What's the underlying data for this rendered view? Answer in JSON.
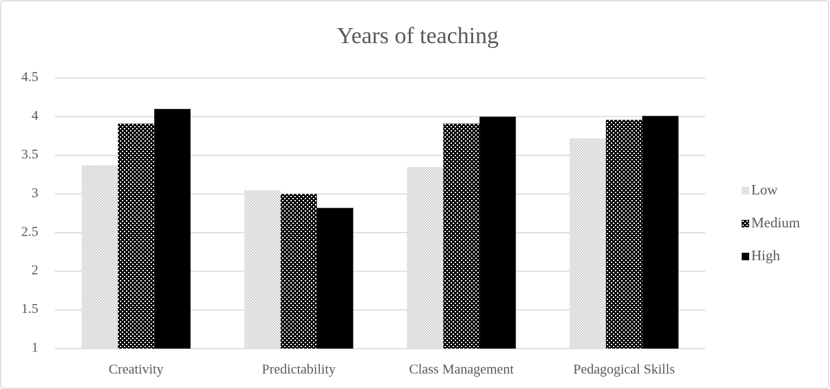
{
  "chart_data": {
    "type": "bar",
    "title": "Years of teaching",
    "categories": [
      "Creativity",
      "Predictability",
      "Class Management",
      "Pedagogical Skills"
    ],
    "series": [
      {
        "name": "Low",
        "color": "#d9d9d9",
        "pattern": "dots",
        "values": [
          3.37,
          3.05,
          3.35,
          3.72
        ]
      },
      {
        "name": "Medium",
        "color": "#000000",
        "pattern": "checker",
        "values": [
          3.91,
          3.0,
          3.91,
          3.96
        ]
      },
      {
        "name": "High",
        "color": "#000000",
        "pattern": "solid",
        "values": [
          4.1,
          2.82,
          4.0,
          4.01
        ]
      }
    ],
    "ylim": [
      1,
      4.5
    ],
    "yticks": [
      1,
      1.5,
      2,
      2.5,
      3,
      3.5,
      4,
      4.5
    ],
    "grid": true,
    "legend": "right"
  }
}
